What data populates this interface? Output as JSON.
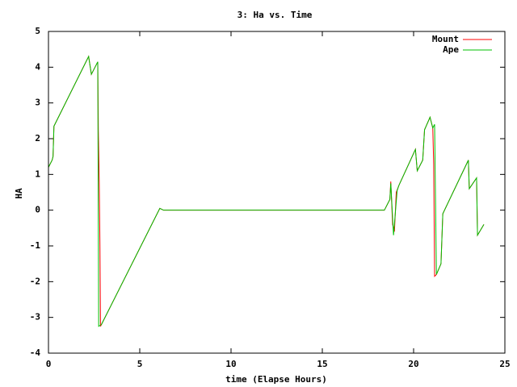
{
  "chart_data": {
    "type": "line",
    "title": "3: Ha vs. Time",
    "xlabel": "time (Elapse Hours)",
    "ylabel": "HA",
    "xlim": [
      0,
      25
    ],
    "xticks": [
      0,
      5,
      10,
      15,
      20,
      25
    ],
    "ylim": [
      -4,
      5
    ],
    "yticks": [
      -4,
      -3,
      -2,
      -1,
      0,
      1,
      2,
      3,
      4,
      5
    ],
    "legend": "upper right",
    "series": [
      {
        "name": "Mount",
        "color": "#ff0000",
        "x": [
          0,
          0.2,
          0.25,
          0.3,
          2.2,
          2.35,
          2.7,
          2.72,
          2.73,
          2.78,
          2.82,
          2.85,
          2.9,
          6.1,
          6.3,
          18.4,
          18.7,
          18.75,
          18.85,
          18.95,
          19.05,
          19.2,
          20.1,
          20.2,
          20.5,
          20.6,
          20.9,
          21.05,
          21.1,
          21.15,
          21.25,
          21.5,
          21.6,
          23.0,
          23.05,
          23.45,
          23.5,
          23.85
        ],
        "values": [
          1.2,
          1.4,
          1.5,
          2.35,
          4.3,
          3.8,
          4.15,
          3.0,
          2.25,
          0.8,
          -1.0,
          -3.25,
          -3.2,
          0.05,
          0,
          0,
          0.3,
          0.8,
          -0.4,
          -0.6,
          0.5,
          0.7,
          1.7,
          1.1,
          1.4,
          2.25,
          2.6,
          2.3,
          1.3,
          -1.85,
          -1.8,
          -1.5,
          -0.1,
          1.4,
          0.6,
          0.9,
          -0.7,
          -0.4
        ]
      },
      {
        "name": "Ape",
        "color": "#00c000",
        "x": [
          0,
          0.2,
          0.25,
          0.3,
          2.2,
          2.35,
          2.7,
          2.75,
          2.9,
          6.1,
          6.3,
          18.4,
          18.7,
          18.75,
          18.9,
          19.1,
          19.2,
          20.1,
          20.2,
          20.5,
          20.6,
          20.9,
          21.05,
          21.15,
          21.25,
          21.5,
          21.6,
          23.0,
          23.05,
          23.45,
          23.5,
          23.85
        ],
        "values": [
          1.2,
          1.4,
          1.5,
          2.35,
          4.3,
          3.8,
          4.15,
          -3.25,
          -3.2,
          0.05,
          0,
          0,
          0.3,
          0.75,
          -0.7,
          0.55,
          0.7,
          1.7,
          1.1,
          1.4,
          2.25,
          2.6,
          2.3,
          2.4,
          -1.8,
          -1.5,
          -0.1,
          1.4,
          0.6,
          0.9,
          -0.7,
          -0.4
        ]
      }
    ]
  }
}
